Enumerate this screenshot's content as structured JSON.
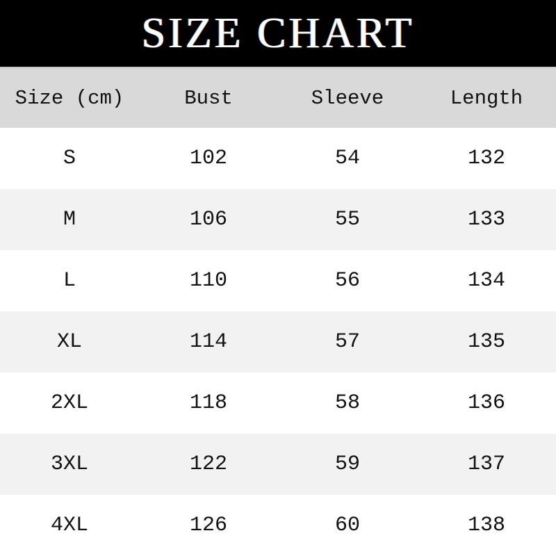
{
  "title": "SIZE CHART",
  "table": {
    "headers": [
      "Size (cm)",
      "Bust",
      "Sleeve",
      "Length"
    ],
    "rows": [
      [
        "S",
        "102",
        "54",
        "132"
      ],
      [
        "M",
        "106",
        "55",
        "133"
      ],
      [
        "L",
        "110",
        "56",
        "134"
      ],
      [
        "XL",
        "114",
        "57",
        "135"
      ],
      [
        "2XL",
        "118",
        "58",
        "136"
      ],
      [
        "3XL",
        "122",
        "59",
        "137"
      ],
      [
        "4XL",
        "126",
        "60",
        "138"
      ]
    ]
  },
  "colors": {
    "title_bg": "#000000",
    "header_bg": "#d9d9d9",
    "row_alt_bg": "#f2f2f2",
    "row_bg": "#ffffff"
  }
}
